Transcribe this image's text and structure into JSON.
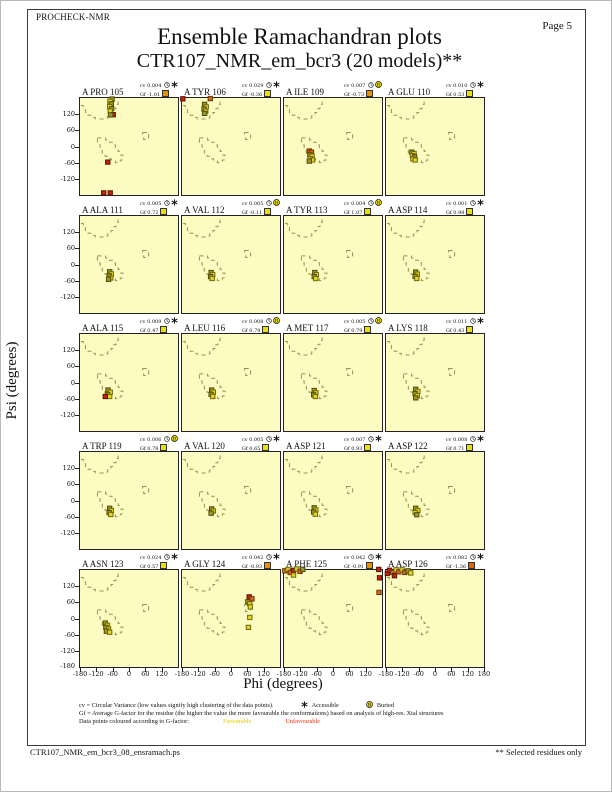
{
  "page": {
    "app_name": "PROCHECK-NMR",
    "page_label": "Page  5",
    "title_line1": "Ensemble Ramachandran plots",
    "title_line2": "CTR107_NMR_em_bcr3 (20 models)**",
    "footer_left": "CTR107_NMR_em_bcr3_08_ensramach.ps",
    "footer_right": "** Selected residues only"
  },
  "legend": {
    "cv_line": "cv = Circular Variance (low values signify high clustering of the data points).",
    "accessible_label": "Accessible",
    "buried_label": "Buried",
    "gf_line": "Gf = Average G-factor for the residue (the higher the value the more favourable the conformations) based on analysis of high-res. Xtal structures",
    "points_line": "Data points coloured according to G-factor:",
    "favourable_label": "Favourable",
    "unfavourable_label": "Unfavourable"
  },
  "colors": {
    "plot_bg": "#FCFCC2",
    "region_line": "#94944E",
    "favourable_text": "#E0CE00",
    "unfavourable_text": "#E83010",
    "point_yellow": "#E3D51C",
    "point_yellow_border": "#6E6710",
    "point_olive": "#9E9822",
    "point_olive_border": "#4F4B0C",
    "point_orange": "#D06A18",
    "point_orange_border": "#6E3608",
    "point_red": "#C22408",
    "point_red_border": "#5C1004",
    "gf_yellow": "#EBE100",
    "gf_orange": "#E89000",
    "gf_dark_orange": "#E06400"
  },
  "chart_data": {
    "type": "scatter",
    "title": "Ensemble Ramachandran plots — CTR107_NMR_em_bcr3 (20 models)**",
    "grid": {
      "cols": 4,
      "rows": 5
    },
    "labels": {
      "cv_prefix": "cv",
      "gf_prefix": "Gf"
    },
    "x_axis": {
      "label": "Phi (degrees)",
      "ticks": [
        -180,
        -120,
        -60,
        0,
        60,
        120
      ],
      "end_tick": 180,
      "range": [
        -180,
        180
      ]
    },
    "y_axis": {
      "label": "Psi (degrees)",
      "ticks": [
        120,
        60,
        0,
        -60,
        -120
      ],
      "bottom_tick": -180,
      "range": [
        -180,
        180
      ]
    },
    "subplots": [
      {
        "label": "A PRO 105",
        "cv": "0.004",
        "gf": "-1.01",
        "gf_color": "gf_orange",
        "access": "accessible",
        "points": [
          [
            -62,
            176,
            "o"
          ],
          [
            -70,
            168,
            "y"
          ],
          [
            -65,
            158,
            "o"
          ],
          [
            -71,
            148,
            "y"
          ],
          [
            -64,
            140,
            "o"
          ],
          [
            -69,
            131,
            "y"
          ],
          [
            -58,
            118,
            "r"
          ],
          [
            -67,
            117,
            "o"
          ],
          [
            -78,
            -58,
            "r"
          ],
          [
            -93,
            -172,
            "r"
          ],
          [
            -69,
            -172,
            "r"
          ]
        ]
      },
      {
        "label": "A TYR 106",
        "cv": "0.029",
        "gf": "-0.36",
        "gf_color": "gf_yellow",
        "access": "accessible",
        "points": [
          [
            -177,
            177,
            "r"
          ],
          [
            -76,
            178,
            "g"
          ],
          [
            -97,
            156,
            "o"
          ],
          [
            -91,
            147,
            "y"
          ],
          [
            -99,
            139,
            "o"
          ],
          [
            -93,
            131,
            "y"
          ],
          [
            -97,
            123,
            "o"
          ]
        ]
      },
      {
        "label": "A ILE 109",
        "cv": "0.007",
        "gf": "-0.73",
        "gf_color": "gf_orange",
        "access": "buried",
        "points": [
          [
            -87,
            -17,
            "g"
          ],
          [
            -79,
            -21,
            "g"
          ],
          [
            -85,
            -31,
            "o"
          ],
          [
            -77,
            -36,
            "y"
          ],
          [
            -83,
            -45,
            "y"
          ],
          [
            -75,
            -50,
            "y"
          ],
          [
            -87,
            -54,
            "o"
          ]
        ]
      },
      {
        "label": "A GLU 110",
        "cv": "0.010",
        "gf": "0.53",
        "gf_color": "gf_yellow",
        "access": "accessible",
        "points": [
          [
            -85,
            -21,
            "o"
          ],
          [
            -77,
            -26,
            "y"
          ],
          [
            -83,
            -34,
            "y"
          ],
          [
            -75,
            -38,
            "o"
          ],
          [
            -81,
            -46,
            "y"
          ],
          [
            -73,
            -50,
            "y"
          ]
        ]
      },
      {
        "label": "A ALA 111",
        "cv": "0.005",
        "gf": "0.72",
        "gf_color": "gf_yellow",
        "access": "accessible",
        "points": [
          [
            -71,
            -27,
            "o"
          ],
          [
            -65,
            -35,
            "y"
          ],
          [
            -73,
            -42,
            "o"
          ],
          [
            -67,
            -50,
            "y"
          ],
          [
            -75,
            -55,
            "o"
          ]
        ]
      },
      {
        "label": "A VAL 112",
        "cv": "0.005",
        "gf": "-0.11",
        "gf_color": "gf_yellow",
        "access": "buried",
        "points": [
          [
            -73,
            -30,
            "o"
          ],
          [
            -67,
            -38,
            "y"
          ],
          [
            -75,
            -45,
            "o"
          ],
          [
            -69,
            -52,
            "y"
          ]
        ]
      },
      {
        "label": "A TYR 113",
        "cv": "0.004",
        "gf": "1.07",
        "gf_color": "gf_yellow",
        "access": "buried",
        "points": [
          [
            -67,
            -30,
            "o"
          ],
          [
            -61,
            -38,
            "y"
          ],
          [
            -69,
            -45,
            "o"
          ],
          [
            -63,
            -52,
            "y"
          ]
        ]
      },
      {
        "label": "A ASP 114",
        "cv": "0.001",
        "gf": "0.98",
        "gf_color": "gf_yellow",
        "access": "accessible",
        "points": [
          [
            -71,
            -28,
            "o"
          ],
          [
            -65,
            -36,
            "y"
          ],
          [
            -73,
            -44,
            "o"
          ],
          [
            -67,
            -52,
            "y"
          ]
        ]
      },
      {
        "label": "A ALA 115",
        "cv": "0.009",
        "gf": "0.47",
        "gf_color": "gf_yellow",
        "access": "accessible",
        "points": [
          [
            -77,
            -28,
            "o"
          ],
          [
            -69,
            -36,
            "y"
          ],
          [
            -79,
            -44,
            "o"
          ],
          [
            -71,
            -52,
            "y"
          ],
          [
            -87,
            -52,
            "r"
          ]
        ]
      },
      {
        "label": "A LEU 116",
        "cv": "0.008",
        "gf": "0.79",
        "gf_color": "gf_yellow",
        "access": "buried",
        "points": [
          [
            -71,
            -28,
            "o"
          ],
          [
            -65,
            -36,
            "y"
          ],
          [
            -73,
            -44,
            "o"
          ],
          [
            -67,
            -52,
            "y"
          ]
        ]
      },
      {
        "label": "A MET 117",
        "cv": "0.005",
        "gf": "0.79",
        "gf_color": "gf_yellow",
        "access": "buried",
        "points": [
          [
            -69,
            -30,
            "o"
          ],
          [
            -63,
            -38,
            "y"
          ],
          [
            -71,
            -46,
            "o"
          ],
          [
            -65,
            -52,
            "y"
          ]
        ]
      },
      {
        "label": "A LYS 118",
        "cv": "0.011",
        "gf": "0.43",
        "gf_color": "gf_yellow",
        "access": "accessible",
        "points": [
          [
            -71,
            -25,
            "o"
          ],
          [
            -63,
            -33,
            "y"
          ],
          [
            -73,
            -41,
            "o"
          ],
          [
            -65,
            -49,
            "y"
          ],
          [
            -71,
            -57,
            "o"
          ]
        ]
      },
      {
        "label": "A TRP 119",
        "cv": "0.006",
        "gf": "0.78",
        "gf_color": "gf_yellow",
        "access": "buried",
        "points": [
          [
            -71,
            -29,
            "o"
          ],
          [
            -65,
            -37,
            "y"
          ],
          [
            -73,
            -45,
            "o"
          ],
          [
            -67,
            -52,
            "y"
          ]
        ]
      },
      {
        "label": "A VAL 120",
        "cv": "0.005",
        "gf": "0.65",
        "gf_color": "gf_yellow",
        "access": "accessible",
        "points": [
          [
            -71,
            -31,
            "o"
          ],
          [
            -65,
            -39,
            "y"
          ],
          [
            -73,
            -47,
            "o"
          ]
        ]
      },
      {
        "label": "A ASP 121",
        "cv": "0.007",
        "gf": "0.93",
        "gf_color": "gf_yellow",
        "access": "accessible",
        "points": [
          [
            -69,
            -27,
            "o"
          ],
          [
            -63,
            -35,
            "y"
          ],
          [
            -71,
            -43,
            "o"
          ],
          [
            -65,
            -51,
            "y"
          ]
        ]
      },
      {
        "label": "A ASP 122",
        "cv": "0.008",
        "gf": "0.71",
        "gf_color": "gf_yellow",
        "access": "accessible",
        "points": [
          [
            -71,
            -29,
            "o"
          ],
          [
            -63,
            -37,
            "y"
          ],
          [
            -73,
            -45,
            "y"
          ],
          [
            -67,
            -53,
            "o"
          ]
        ]
      },
      {
        "label": "A ASN 123",
        "cv": "0.024",
        "gf": "0.57",
        "gf_color": "gf_yellow",
        "access": "accessible",
        "points": [
          [
            -87,
            -17,
            "o"
          ],
          [
            -79,
            -25,
            "y"
          ],
          [
            -85,
            -33,
            "o"
          ],
          [
            -75,
            -39,
            "y"
          ],
          [
            -83,
            -47,
            "o"
          ],
          [
            -71,
            -51,
            "y"
          ]
        ]
      },
      {
        "label": "A GLY 124",
        "cv": "0.042",
        "gf": "-0.93",
        "gf_color": "gf_orange",
        "access": "accessible",
        "points": [
          [
            67,
            80,
            "r"
          ],
          [
            77,
            73,
            "g"
          ],
          [
            62,
            62,
            "o"
          ],
          [
            69,
            54,
            "y"
          ],
          [
            71,
            43,
            "y"
          ],
          [
            69,
            4,
            "y"
          ],
          [
            64,
            -33,
            "y"
          ]
        ]
      },
      {
        "label": "A PHE 125",
        "cv": "0.042",
        "gf": "-0.91",
        "gf_color": "gf_orange",
        "access": "accessible",
        "points": [
          [
            -177,
            177,
            "g"
          ],
          [
            -165,
            182,
            "y"
          ],
          [
            -157,
            171,
            "g"
          ],
          [
            -145,
            179,
            "r"
          ],
          [
            -133,
            184,
            "y"
          ],
          [
            -145,
            161,
            "y"
          ],
          [
            -121,
            175,
            "g"
          ],
          [
            -111,
            182,
            "o"
          ],
          [
            168,
            182,
            "r"
          ],
          [
            171,
            151,
            "r"
          ],
          [
            169,
            97,
            "g"
          ]
        ]
      },
      {
        "label": "A ASP 126",
        "cv": "0.082",
        "gf": "-1.36",
        "gf_color": "gf_dark_orange",
        "access": "accessible",
        "points": [
          [
            -175,
            167,
            "r"
          ],
          [
            -167,
            179,
            "r"
          ],
          [
            -155,
            171,
            "g"
          ],
          [
            -143,
            181,
            "y"
          ],
          [
            -149,
            159,
            "r"
          ],
          [
            -133,
            173,
            "g"
          ],
          [
            -121,
            181,
            "y"
          ],
          [
            -111,
            171,
            "g"
          ],
          [
            -99,
            177,
            "o"
          ],
          [
            -89,
            169,
            "y"
          ]
        ]
      }
    ]
  }
}
